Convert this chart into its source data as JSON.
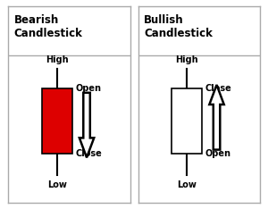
{
  "bg_color": "#ffffff",
  "border_color": "#aaaaaa",
  "title_bearish": "Bearish\nCandlestick",
  "title_bullish": "Bullish\nCandlestick",
  "bearish_body_color": "#dd0000",
  "bullish_body_color": "#ffffff",
  "label_high": "High",
  "label_low": "Low",
  "label_open": "Open",
  "label_close": "Close",
  "font_size_title": 8.5,
  "font_size_label": 7.0
}
